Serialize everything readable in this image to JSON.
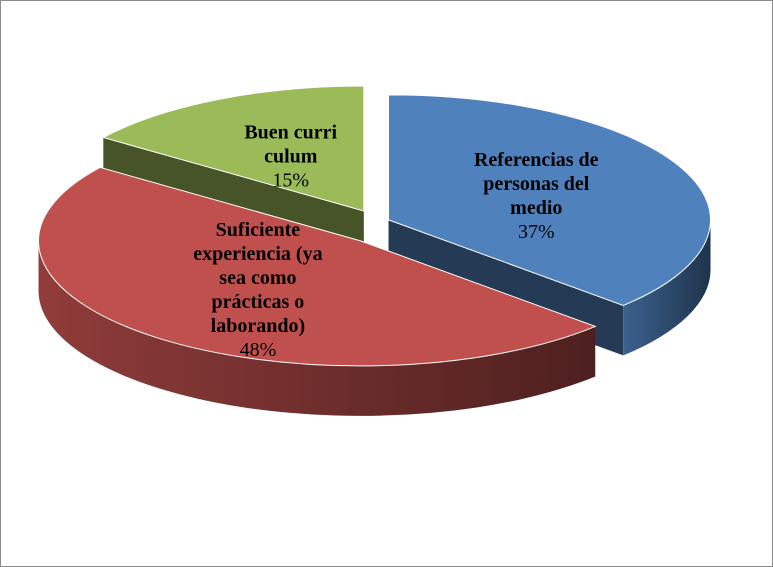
{
  "chart_data": {
    "type": "pie",
    "three_d": true,
    "exploded": true,
    "categories": [
      "Referencias de personas del medio",
      "Suficiente experiencia (ya sea como prácticas o laborando)",
      "Buen curri culum"
    ],
    "values": [
      37,
      48,
      15
    ],
    "value_labels": [
      "37%",
      "48%",
      "15%"
    ],
    "colors": [
      "#4f81bd",
      "#c0504d",
      "#9bbb59"
    ]
  }
}
